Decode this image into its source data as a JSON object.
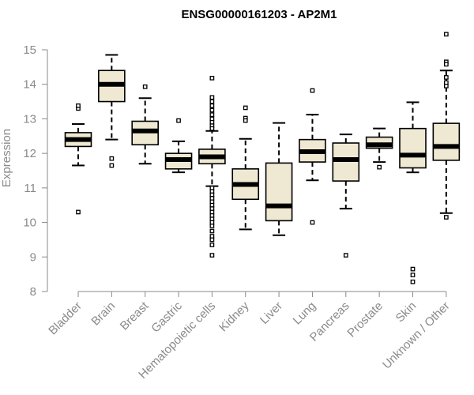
{
  "chart_data": {
    "type": "boxplot",
    "title": "ENSG00000161203 - AP2M1",
    "ylabel": "Expression",
    "xlabel": "",
    "ylim": [
      8,
      15.5
    ],
    "yticks": [
      8,
      9,
      10,
      11,
      12,
      13,
      14,
      15
    ],
    "box_fill": "#efe8d2",
    "categories": [
      "Bladder",
      "Brain",
      "Breast",
      "Gastric",
      "Hematopoietic cells",
      "Kidney",
      "Liver",
      "Lung",
      "Pancreas",
      "Prostate",
      "Skin",
      "Unknown / Other"
    ],
    "boxes": [
      {
        "q1": 12.2,
        "median": 12.4,
        "q3": 12.6,
        "whisker_low": 11.65,
        "whisker_high": 12.85,
        "outliers": [
          13.3,
          13.38,
          10.3
        ]
      },
      {
        "q1": 13.5,
        "median": 14.0,
        "q3": 14.4,
        "whisker_low": 12.4,
        "whisker_high": 14.85,
        "outliers": [
          11.85,
          11.65
        ]
      },
      {
        "q1": 12.25,
        "median": 12.65,
        "q3": 12.93,
        "whisker_low": 11.7,
        "whisker_high": 13.6,
        "outliers": [
          13.93
        ]
      },
      {
        "q1": 11.55,
        "median": 11.82,
        "q3": 12.0,
        "whisker_low": 11.45,
        "whisker_high": 12.35,
        "outliers": [
          12.95
        ]
      },
      {
        "q1": 11.7,
        "median": 11.9,
        "q3": 12.12,
        "whisker_low": 11.05,
        "whisker_high": 12.65,
        "outliers": [
          14.18,
          13.62,
          13.5,
          13.38,
          13.25,
          13.12,
          13.0,
          12.9,
          12.8,
          12.72,
          11.0,
          10.9,
          10.8,
          10.7,
          10.6,
          10.5,
          10.4,
          10.3,
          10.2,
          10.1,
          10.0,
          9.9,
          9.75,
          9.6,
          9.5,
          9.35,
          9.05
        ]
      },
      {
        "q1": 10.67,
        "median": 11.1,
        "q3": 11.55,
        "whisker_low": 9.8,
        "whisker_high": 12.42,
        "outliers": [
          13.32,
          13.02,
          12.95
        ]
      },
      {
        "q1": 10.05,
        "median": 10.48,
        "q3": 11.72,
        "whisker_low": 9.63,
        "whisker_high": 12.88,
        "outliers": []
      },
      {
        "q1": 11.75,
        "median": 12.05,
        "q3": 12.4,
        "whisker_low": 11.22,
        "whisker_high": 13.12,
        "outliers": [
          13.82,
          10.0
        ]
      },
      {
        "q1": 11.2,
        "median": 11.82,
        "q3": 12.3,
        "whisker_low": 10.4,
        "whisker_high": 12.55,
        "outliers": [
          9.05
        ]
      },
      {
        "q1": 12.15,
        "median": 12.25,
        "q3": 12.47,
        "whisker_low": 11.75,
        "whisker_high": 12.72,
        "outliers": [
          11.6
        ]
      },
      {
        "q1": 11.58,
        "median": 11.95,
        "q3": 12.72,
        "whisker_low": 11.45,
        "whisker_high": 13.48,
        "outliers": [
          8.65,
          8.48,
          8.28
        ]
      },
      {
        "q1": 11.8,
        "median": 12.2,
        "q3": 12.87,
        "whisker_low": 10.27,
        "whisker_high": 14.4,
        "outliers": [
          15.45,
          14.65,
          14.58,
          14.2,
          14.05,
          13.95,
          10.15
        ]
      }
    ]
  }
}
